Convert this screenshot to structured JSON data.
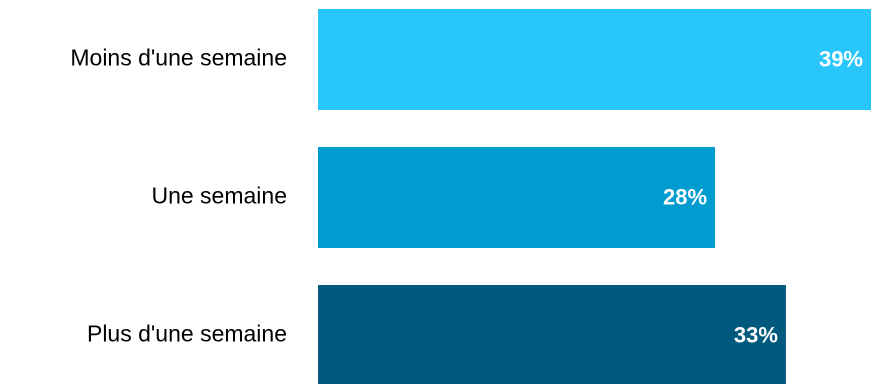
{
  "chart_data": {
    "type": "bar",
    "orientation": "horizontal",
    "categories": [
      "Moins d'une semaine",
      "Une semaine",
      "Plus d'une semaine"
    ],
    "values": [
      39,
      28,
      33
    ],
    "value_labels": [
      "39%",
      "28%",
      "33%"
    ],
    "colors": [
      "#29c6fc",
      "#019ccf",
      "#015a7d"
    ],
    "xlim": [
      0,
      39
    ],
    "grid": false,
    "title": "",
    "xlabel": "",
    "ylabel": ""
  }
}
